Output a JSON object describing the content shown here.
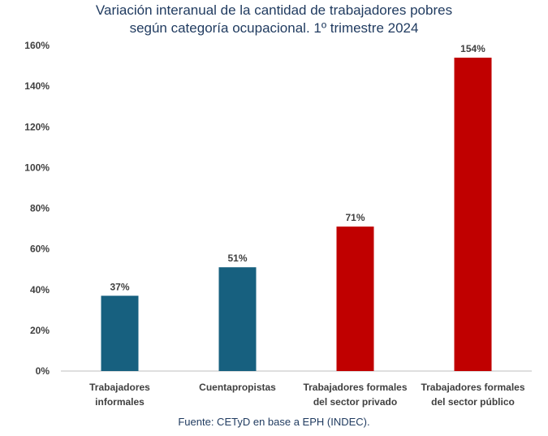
{
  "chart_data": {
    "type": "bar",
    "title_lines": [
      "Variación interanual de la cantidad de trabajadores pobres",
      "según categoría ocupacional. 1º trimestre 2024"
    ],
    "categories": [
      [
        "Trabajadores",
        "informales"
      ],
      [
        "Cuentapropistas"
      ],
      [
        "Trabajadores formales",
        "del sector privado"
      ],
      [
        "Trabajadores formales",
        "del sector público"
      ]
    ],
    "values": [
      37,
      51,
      71,
      154
    ],
    "data_labels": [
      "37%",
      "51%",
      "71%",
      "154%"
    ],
    "bar_colors": [
      "#17607f",
      "#17607f",
      "#c00000",
      "#c00000"
    ],
    "ylim": [
      0,
      160
    ],
    "yticks": [
      0,
      20,
      40,
      60,
      80,
      100,
      120,
      140,
      160
    ],
    "ytick_labels": [
      "0%",
      "20%",
      "40%",
      "60%",
      "80%",
      "100%",
      "120%",
      "140%",
      "160%"
    ],
    "xlabel": "",
    "ylabel": "",
    "grid": false,
    "source": "Fuente: CETyD en base a EPH (INDEC)."
  }
}
